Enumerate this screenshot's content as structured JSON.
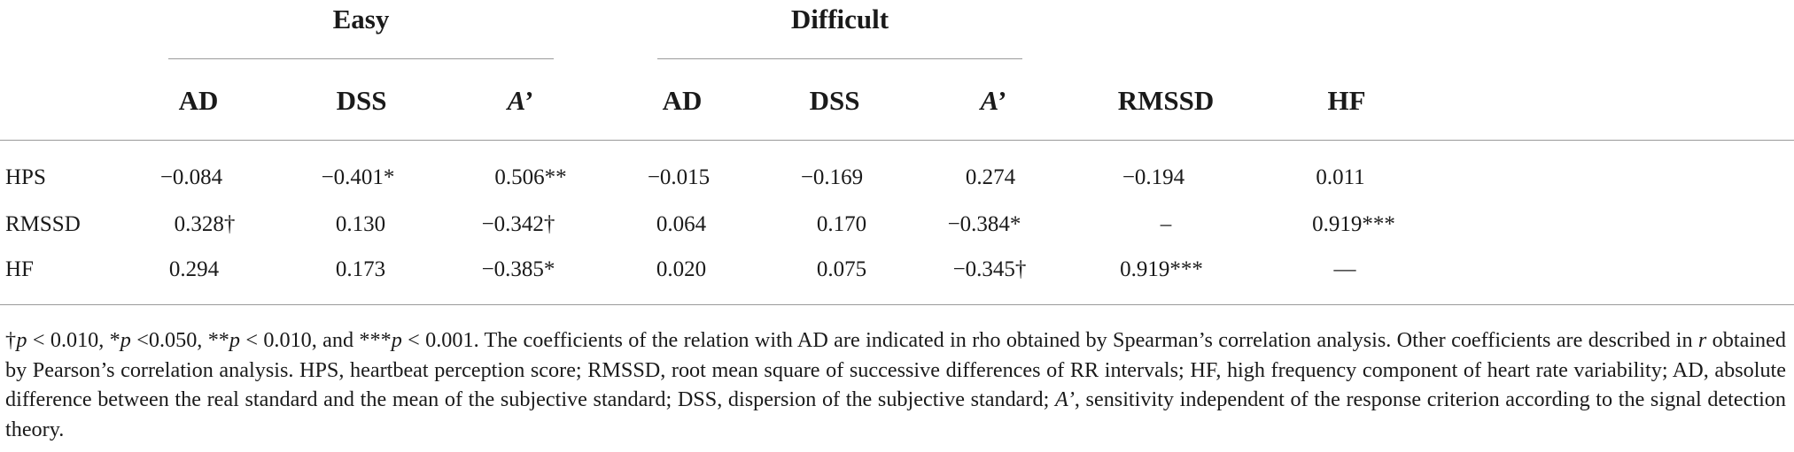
{
  "groups": {
    "easy": "Easy",
    "difficult": "Difficult"
  },
  "columns": {
    "easy_ad": "AD",
    "easy_dss": "DSS",
    "easy_a": "A’",
    "diff_ad": "AD",
    "diff_dss": "DSS",
    "diff_a": "A’",
    "rmssd": "RMSSD",
    "hf": "HF"
  },
  "rows": [
    {
      "label": "HPS",
      "cells": [
        "−0.084",
        "−0.401*",
        "0.506**",
        "−0.015",
        "−0.169",
        "0.274",
        "−0.194",
        "0.011"
      ]
    },
    {
      "label": "RMSSD",
      "cells": [
        "0.328†",
        "0.130",
        "−0.342†",
        "0.064",
        "0.170",
        "−0.384*",
        "–",
        "0.919***"
      ]
    },
    {
      "label": "HF",
      "cells": [
        "0.294",
        "0.173",
        "−0.385*",
        "0.020",
        "0.075",
        "−0.345†",
        "0.919***",
        "—"
      ]
    }
  ],
  "footnote": {
    "p1_mark": "†",
    "p1_p": "p",
    "p1_rest": " < 0.010, *",
    "p2_p": "p",
    "p2_rest": " <0.050, **",
    "p3_p": "p",
    "p3_rest": " < 0.010, and ***",
    "p4_p": "p",
    "p4_rest": " < 0.001. The coefficients of the relation with AD are indicated in rho obtained by Spearman’s correlation analysis. Other coefficients are described in ",
    "r": "r",
    "after_r": " obtained by Pearson’s correlation analysis. HPS, heartbeat perception score; RMSSD, root mean square of successive differences of RR intervals; HF, high frequency component of heart rate variability; AD, absolute difference between the real standard and the mean of the subjective standard; DSS, dispersion of the subjective standard; ",
    "a_prime": "A’",
    "tail": ", sensitivity independent of the response criterion according to the signal detection theory."
  }
}
